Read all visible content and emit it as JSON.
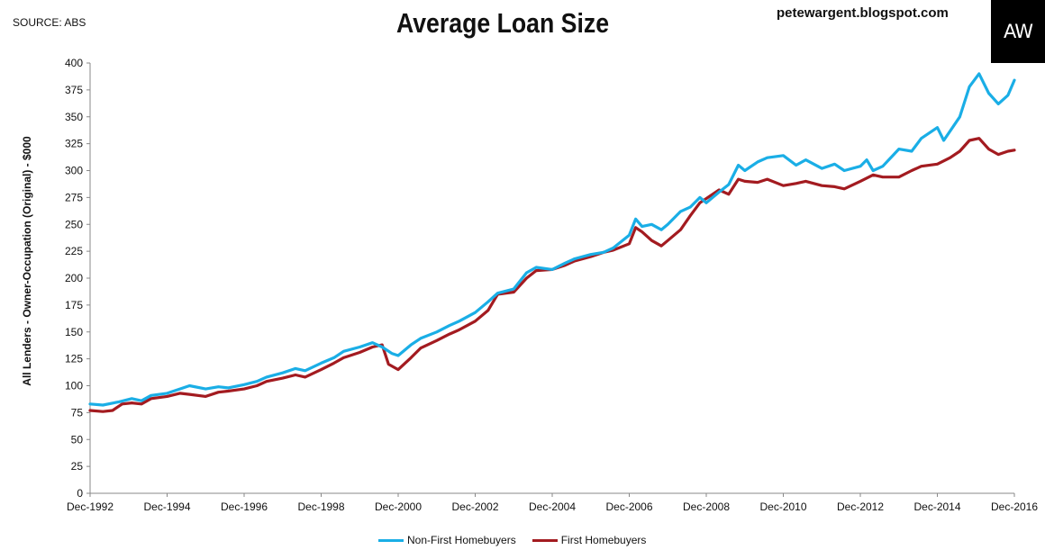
{
  "header": {
    "source": "SOURCE: ABS",
    "title": "Average Loan Size",
    "site": "petewargent.blogspot.com",
    "logo": "AW"
  },
  "chart_data": {
    "type": "line",
    "title": "Average Loan Size",
    "ylabel": "All Lenders - Owner-Occupation (Original) - $000",
    "xlabel": "",
    "ylim": [
      0,
      400
    ],
    "yticks": [
      0,
      25,
      50,
      75,
      100,
      125,
      150,
      175,
      200,
      225,
      250,
      275,
      300,
      325,
      350,
      375,
      400
    ],
    "xlim": [
      1992.917,
      2016.917
    ],
    "xticks": [
      {
        "label": "Dec-1992",
        "x": 1992.917
      },
      {
        "label": "Dec-1994",
        "x": 1994.917
      },
      {
        "label": "Dec-1996",
        "x": 1996.917
      },
      {
        "label": "Dec-1998",
        "x": 1998.917
      },
      {
        "label": "Dec-2000",
        "x": 2000.917
      },
      {
        "label": "Dec-2002",
        "x": 2002.917
      },
      {
        "label": "Dec-2004",
        "x": 2004.917
      },
      {
        "label": "Dec-2006",
        "x": 2006.917
      },
      {
        "label": "Dec-2008",
        "x": 2008.917
      },
      {
        "label": "Dec-2010",
        "x": 2010.917
      },
      {
        "label": "Dec-2012",
        "x": 2012.917
      },
      {
        "label": "Dec-2014",
        "x": 2014.917
      },
      {
        "label": "Dec-2016",
        "x": 2016.917
      }
    ],
    "grid": false,
    "legend_position": "bottom",
    "series": [
      {
        "name": "Non-First Homebuyers",
        "color": "#1aaee6",
        "points": [
          [
            1992.917,
            83
          ],
          [
            1993.25,
            82
          ],
          [
            1993.667,
            85
          ],
          [
            1994.0,
            88
          ],
          [
            1994.25,
            86
          ],
          [
            1994.5,
            91
          ],
          [
            1994.917,
            93
          ],
          [
            1995.25,
            97
          ],
          [
            1995.5,
            100
          ],
          [
            1995.917,
            97
          ],
          [
            1996.25,
            99
          ],
          [
            1996.5,
            98
          ],
          [
            1996.917,
            101
          ],
          [
            1997.25,
            104
          ],
          [
            1997.5,
            108
          ],
          [
            1997.917,
            112
          ],
          [
            1998.25,
            116
          ],
          [
            1998.5,
            114
          ],
          [
            1998.917,
            121
          ],
          [
            1999.25,
            126
          ],
          [
            1999.5,
            132
          ],
          [
            1999.917,
            136
          ],
          [
            2000.25,
            140
          ],
          [
            2000.5,
            136
          ],
          [
            2000.75,
            130
          ],
          [
            2000.917,
            128
          ],
          [
            2001.25,
            138
          ],
          [
            2001.5,
            144
          ],
          [
            2001.917,
            150
          ],
          [
            2002.25,
            156
          ],
          [
            2002.5,
            160
          ],
          [
            2002.917,
            168
          ],
          [
            2003.25,
            178
          ],
          [
            2003.5,
            186
          ],
          [
            2003.917,
            190
          ],
          [
            2004.25,
            205
          ],
          [
            2004.5,
            210
          ],
          [
            2004.917,
            208
          ],
          [
            2005.25,
            214
          ],
          [
            2005.5,
            218
          ],
          [
            2005.917,
            222
          ],
          [
            2006.25,
            224
          ],
          [
            2006.5,
            228
          ],
          [
            2006.917,
            240
          ],
          [
            2007.083,
            255
          ],
          [
            2007.25,
            248
          ],
          [
            2007.5,
            250
          ],
          [
            2007.75,
            245
          ],
          [
            2007.917,
            250
          ],
          [
            2008.25,
            262
          ],
          [
            2008.5,
            266
          ],
          [
            2008.75,
            275
          ],
          [
            2008.917,
            270
          ],
          [
            2009.25,
            280
          ],
          [
            2009.5,
            287
          ],
          [
            2009.75,
            305
          ],
          [
            2009.917,
            300
          ],
          [
            2010.25,
            308
          ],
          [
            2010.5,
            312
          ],
          [
            2010.917,
            314
          ],
          [
            2011.25,
            305
          ],
          [
            2011.5,
            310
          ],
          [
            2011.917,
            302
          ],
          [
            2012.25,
            306
          ],
          [
            2012.5,
            300
          ],
          [
            2012.917,
            304
          ],
          [
            2013.083,
            310
          ],
          [
            2013.25,
            300
          ],
          [
            2013.5,
            304
          ],
          [
            2013.917,
            320
          ],
          [
            2014.25,
            318
          ],
          [
            2014.5,
            330
          ],
          [
            2014.917,
            340
          ],
          [
            2015.083,
            328
          ],
          [
            2015.5,
            350
          ],
          [
            2015.75,
            378
          ],
          [
            2016.0,
            390
          ],
          [
            2016.25,
            372
          ],
          [
            2016.5,
            362
          ],
          [
            2016.75,
            370
          ],
          [
            2016.917,
            384
          ]
        ]
      },
      {
        "name": "First Homebuyers",
        "color": "#a31b20",
        "points": [
          [
            1992.917,
            77
          ],
          [
            1993.25,
            76
          ],
          [
            1993.5,
            77
          ],
          [
            1993.75,
            83
          ],
          [
            1994.0,
            84
          ],
          [
            1994.25,
            83
          ],
          [
            1994.5,
            88
          ],
          [
            1994.917,
            90
          ],
          [
            1995.25,
            93
          ],
          [
            1995.5,
            92
          ],
          [
            1995.917,
            90
          ],
          [
            1996.25,
            94
          ],
          [
            1996.5,
            95
          ],
          [
            1996.917,
            97
          ],
          [
            1997.25,
            100
          ],
          [
            1997.5,
            104
          ],
          [
            1997.917,
            107
          ],
          [
            1998.25,
            110
          ],
          [
            1998.5,
            108
          ],
          [
            1998.917,
            115
          ],
          [
            1999.25,
            121
          ],
          [
            1999.5,
            126
          ],
          [
            1999.917,
            131
          ],
          [
            2000.25,
            136
          ],
          [
            2000.5,
            138
          ],
          [
            2000.667,
            120
          ],
          [
            2000.917,
            115
          ],
          [
            2001.25,
            126
          ],
          [
            2001.5,
            135
          ],
          [
            2001.917,
            142
          ],
          [
            2002.25,
            148
          ],
          [
            2002.5,
            152
          ],
          [
            2002.917,
            160
          ],
          [
            2003.25,
            170
          ],
          [
            2003.5,
            185
          ],
          [
            2003.917,
            187
          ],
          [
            2004.25,
            200
          ],
          [
            2004.5,
            207
          ],
          [
            2004.917,
            208
          ],
          [
            2005.25,
            212
          ],
          [
            2005.5,
            216
          ],
          [
            2005.917,
            220
          ],
          [
            2006.25,
            224
          ],
          [
            2006.5,
            226
          ],
          [
            2006.917,
            232
          ],
          [
            2007.083,
            247
          ],
          [
            2007.25,
            243
          ],
          [
            2007.5,
            235
          ],
          [
            2007.75,
            230
          ],
          [
            2007.917,
            235
          ],
          [
            2008.25,
            245
          ],
          [
            2008.5,
            258
          ],
          [
            2008.75,
            270
          ],
          [
            2008.917,
            274
          ],
          [
            2009.25,
            282
          ],
          [
            2009.5,
            278
          ],
          [
            2009.75,
            292
          ],
          [
            2009.917,
            290
          ],
          [
            2010.25,
            289
          ],
          [
            2010.5,
            292
          ],
          [
            2010.917,
            286
          ],
          [
            2011.25,
            288
          ],
          [
            2011.5,
            290
          ],
          [
            2011.917,
            286
          ],
          [
            2012.25,
            285
          ],
          [
            2012.5,
            283
          ],
          [
            2012.917,
            290
          ],
          [
            2013.25,
            296
          ],
          [
            2013.5,
            294
          ],
          [
            2013.917,
            294
          ],
          [
            2014.25,
            300
          ],
          [
            2014.5,
            304
          ],
          [
            2014.917,
            306
          ],
          [
            2015.25,
            312
          ],
          [
            2015.5,
            318
          ],
          [
            2015.75,
            328
          ],
          [
            2016.0,
            330
          ],
          [
            2016.25,
            320
          ],
          [
            2016.5,
            315
          ],
          [
            2016.75,
            318
          ],
          [
            2016.917,
            319
          ]
        ]
      }
    ]
  }
}
